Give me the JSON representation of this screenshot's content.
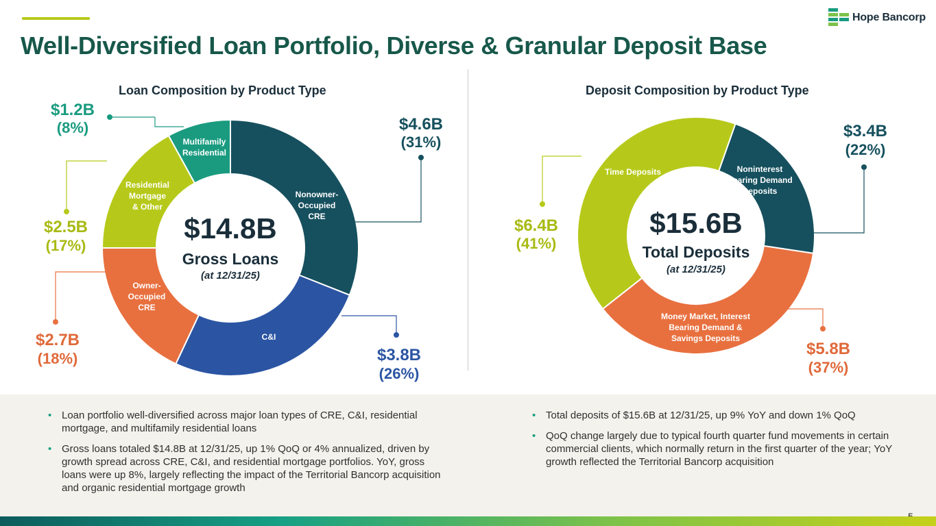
{
  "header": {
    "title": "Well-Diversified Loan Portfolio, Diverse & Granular Deposit Base",
    "logo_text": "Hope Bancorp"
  },
  "colors": {
    "title": "#17584a",
    "dark_teal": "#16505e",
    "blue": "#2b55a3",
    "orange": "#e8703f",
    "lime": "#b6c91a",
    "green": "#1a9b80"
  },
  "chart_data": [
    {
      "type": "pie",
      "title": "Loan Composition by Product Type",
      "center": {
        "value": "$14.8B",
        "label": "Gross Loans",
        "note": "(at 12/31/25)"
      },
      "slices": [
        {
          "label": "Nonowner-Occupied CRE",
          "value": 31,
          "amount": "$4.6B",
          "pct": "(31%)",
          "color": "#16505e",
          "label_color": "#16505e"
        },
        {
          "label": "C&I",
          "value": 26,
          "amount": "$3.8B",
          "pct": "(26%)",
          "color": "#2b55a3",
          "label_color": "#2b55a3"
        },
        {
          "label": "Owner-Occupied CRE",
          "value": 18,
          "amount": "$2.7B",
          "pct": "(18%)",
          "color": "#e8703f",
          "label_color": "#e0693a"
        },
        {
          "label": "Residential Mortgage & Other",
          "value": 17,
          "amount": "$2.5B",
          "pct": "(17%)",
          "color": "#b6c91a",
          "label_color": "#a8ba12"
        },
        {
          "label": "Multifamily Residential",
          "value": 8,
          "amount": "$1.2B",
          "pct": "(8%)",
          "color": "#1a9b80",
          "label_color": "#1a9b80"
        }
      ]
    },
    {
      "type": "pie",
      "title": "Deposit Composition by Product Type",
      "center": {
        "value": "$15.6B",
        "label": "Total Deposits",
        "note": "(at 12/31/25)"
      },
      "slices": [
        {
          "label": "Noninterest Bearing Demand Deposits",
          "value": 22,
          "amount": "$3.4B",
          "pct": "(22%)",
          "color": "#16505e",
          "label_color": "#16505e"
        },
        {
          "label": "Money Market, Interest Bearing Demand & Savings Deposits",
          "value": 37,
          "amount": "$5.8B",
          "pct": "(37%)",
          "color": "#e8703f",
          "label_color": "#e0693a"
        },
        {
          "label": "Time Deposits",
          "value": 41,
          "amount": "$6.4B",
          "pct": "(41%)",
          "color": "#b6c91a",
          "label_color": "#a8ba12"
        }
      ]
    }
  ],
  "bullets": {
    "loans": [
      "Loan portfolio well-diversified across major loan types of CRE, C&I, residential mortgage, and multifamily residential loans",
      "Gross loans totaled $14.8B at 12/31/25, up 1% QoQ or 4% annualized, driven by growth spread across CRE, C&I, and residential mortgage portfolios. YoY, gross loans were up 8%, largely reflecting the impact of the Territorial Bancorp acquisition and organic residential mortgage growth"
    ],
    "deposits": [
      "Total deposits of $15.6B at 12/31/25, up 9% YoY and down 1% QoQ",
      "QoQ change largely due to typical fourth quarter fund movements in certain commercial clients, which normally return in the first quarter of the year; YoY growth reflected the Territorial Bancorp acquisition"
    ]
  },
  "footer": {
    "page_number": "5"
  }
}
